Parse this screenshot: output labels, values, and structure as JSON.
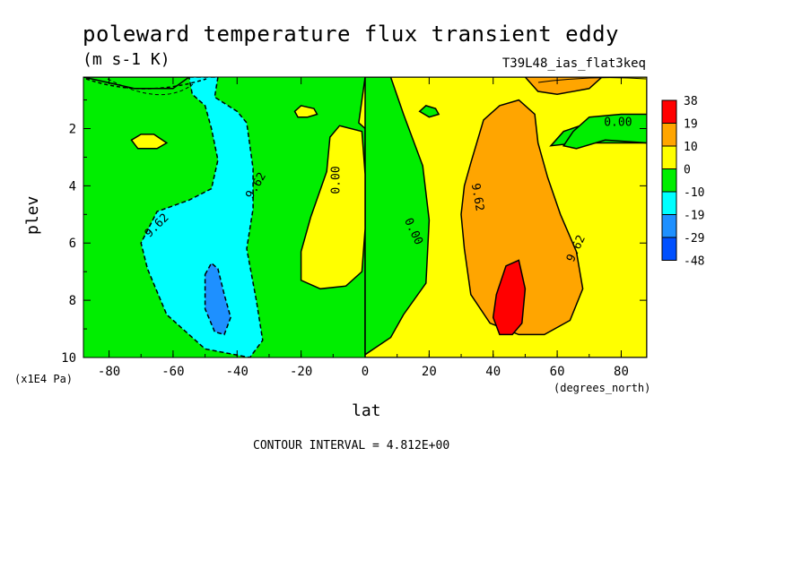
{
  "chart_data": {
    "type": "heatmap",
    "title": "poleward temperature flux transient eddy",
    "units": "(m s-1 K)",
    "run_id": "T39L48_ias_flat3keq",
    "xlabel": "lat",
    "x_units": "(degrees_north)",
    "ylabel": "plev",
    "y_units": "(x1E4 Pa)",
    "xlim": [
      -88,
      88
    ],
    "ylim": [
      10,
      0.2
    ],
    "x_ticks": [
      "-80",
      "-60",
      "-40",
      "-20",
      "0",
      "20",
      "40",
      "60",
      "80"
    ],
    "x_tick_values": [
      -80,
      -60,
      -40,
      -20,
      0,
      20,
      40,
      60,
      80
    ],
    "y_ticks": [
      "2",
      "4",
      "6",
      "8",
      "10"
    ],
    "y_tick_values": [
      2,
      4,
      6,
      8,
      10
    ],
    "contour_interval": "CONTOUR INTERVAL = 4.812E+00",
    "contour_labels": [
      {
        "text": "9.62",
        "lat": -65,
        "plev": 5.4,
        "rot": -45
      },
      {
        "text": "9.62",
        "lat": -34,
        "plev": 4.0,
        "rot": -60
      },
      {
        "text": "0.00",
        "lat": -9,
        "plev": 3.8,
        "rot": -90
      },
      {
        "text": "0.00",
        "lat": 15,
        "plev": 5.6,
        "rot": 65
      },
      {
        "text": "9.62",
        "lat": 35,
        "plev": 4.4,
        "rot": 80
      },
      {
        "text": "9.62",
        "lat": 66,
        "plev": 6.2,
        "rot": -65
      },
      {
        "text": "0.00",
        "lat": 79,
        "plev": 1.8,
        "rot": 0
      }
    ],
    "legend": [
      {
        "label": "38",
        "color": "#ff0000"
      },
      {
        "label": "19",
        "color": "#ffa500"
      },
      {
        "label": "10",
        "color": "#ffff00"
      },
      {
        "label": "0",
        "color": "#00ee00"
      },
      {
        "label": "-10",
        "color": "#00ffff"
      },
      {
        "label": "-19",
        "color": "#1e90ff"
      },
      {
        "label": "-29",
        "color": "#0050ff"
      },
      {
        "label": "-48",
        "color": ""
      }
    ],
    "regions": [
      {
        "name": "green-bg",
        "color": "#00ee00",
        "pts": [
          [
            -88,
            0.2
          ],
          [
            88,
            0.2
          ],
          [
            88,
            10
          ],
          [
            -88,
            10
          ]
        ]
      },
      {
        "name": "yellow-nh",
        "color": "#ffff00",
        "pts": [
          [
            0,
            0.2
          ],
          [
            88,
            0.2
          ],
          [
            88,
            1.7
          ],
          [
            75,
            1.6
          ],
          [
            62,
            2.1
          ],
          [
            58,
            2.6
          ],
          [
            66,
            2.5
          ],
          [
            88,
            2.5
          ],
          [
            88,
            10
          ],
          [
            0,
            10
          ],
          [
            0,
            2.0
          ],
          [
            -2,
            1.8
          ]
        ]
      },
      {
        "name": "green-nh-tongue",
        "color": "#00ee00",
        "pts": [
          [
            0,
            0.2
          ],
          [
            0,
            9.9
          ],
          [
            8,
            9.3
          ],
          [
            12,
            8.5
          ],
          [
            19,
            7.4
          ],
          [
            20,
            5.2
          ],
          [
            18,
            3.3
          ],
          [
            12,
            1.5
          ],
          [
            8,
            0.2
          ]
        ]
      },
      {
        "name": "yellow-midlat-sh",
        "color": "#ffff00",
        "pts": [
          [
            -20,
            7.3
          ],
          [
            -20,
            6.3
          ],
          [
            -17,
            5.1
          ],
          [
            -12,
            3.5
          ],
          [
            -11,
            2.3
          ],
          [
            -8,
            1.9
          ],
          [
            -1,
            2.1
          ],
          [
            0,
            3.6
          ],
          [
            0,
            5.5
          ],
          [
            -1,
            7.0
          ],
          [
            -6,
            7.5
          ],
          [
            -14,
            7.6
          ]
        ]
      },
      {
        "name": "yellow-small-sh",
        "color": "#ffff00",
        "pts": [
          [
            -73,
            2.4
          ],
          [
            -70,
            2.2
          ],
          [
            -66,
            2.2
          ],
          [
            -62,
            2.5
          ],
          [
            -65,
            2.7
          ],
          [
            -71,
            2.7
          ]
        ]
      },
      {
        "name": "yellow-small-sh2",
        "color": "#ffff00",
        "pts": [
          [
            -22,
            1.4
          ],
          [
            -20,
            1.2
          ],
          [
            -16,
            1.3
          ],
          [
            -15,
            1.5
          ],
          [
            -18,
            1.6
          ],
          [
            -21,
            1.6
          ]
        ]
      },
      {
        "name": "green-small-nh",
        "color": "#00ee00",
        "pts": [
          [
            17,
            1.4
          ],
          [
            19,
            1.2
          ],
          [
            22,
            1.3
          ],
          [
            23,
            1.5
          ],
          [
            20,
            1.6
          ]
        ]
      },
      {
        "name": "green-top-nh",
        "color": "#00ee00",
        "pts": [
          [
            62,
            2.6
          ],
          [
            65,
            2.1
          ],
          [
            70,
            1.6
          ],
          [
            80,
            1.5
          ],
          [
            88,
            1.5
          ],
          [
            88,
            2.5
          ],
          [
            75,
            2.4
          ],
          [
            66,
            2.7
          ]
        ]
      },
      {
        "name": "orange-nh",
        "color": "#ffa500",
        "pts": [
          [
            33,
            3.2
          ],
          [
            37,
            1.7
          ],
          [
            42,
            1.2
          ],
          [
            48,
            1.0
          ],
          [
            53,
            1.5
          ],
          [
            54,
            2.5
          ],
          [
            57,
            3.7
          ],
          [
            61,
            5.0
          ],
          [
            66,
            6.3
          ],
          [
            68,
            7.6
          ],
          [
            64,
            8.7
          ],
          [
            56,
            9.2
          ],
          [
            48,
            9.2
          ],
          [
            39,
            8.8
          ],
          [
            33,
            7.8
          ],
          [
            31,
            6.2
          ],
          [
            30,
            5.0
          ],
          [
            31,
            4.0
          ]
        ]
      },
      {
        "name": "orange-top-nh",
        "color": "#ffa500",
        "pts": [
          [
            50,
            0.2
          ],
          [
            74,
            0.2
          ],
          [
            70,
            0.6
          ],
          [
            60,
            0.8
          ],
          [
            54,
            0.7
          ]
        ]
      },
      {
        "name": "red-nh",
        "color": "#ff0000",
        "pts": [
          [
            41,
            7.8
          ],
          [
            44,
            6.8
          ],
          [
            48,
            6.6
          ],
          [
            50,
            7.6
          ],
          [
            49,
            8.8
          ],
          [
            46,
            9.2
          ],
          [
            42,
            9.2
          ],
          [
            40,
            8.6
          ]
        ]
      },
      {
        "name": "cyan-sh",
        "color": "#00ffff",
        "pts": [
          [
            -55,
            0.2
          ],
          [
            -46,
            0.2
          ],
          [
            -47,
            0.9
          ],
          [
            -40,
            1.4
          ],
          [
            -37,
            1.8
          ],
          [
            -35,
            3.4
          ],
          [
            -35,
            4.8
          ],
          [
            -37,
            6.2
          ],
          [
            -34,
            8.0
          ],
          [
            -32,
            9.4
          ],
          [
            -36,
            10.0
          ],
          [
            -50,
            9.7
          ],
          [
            -62,
            8.5
          ],
          [
            -68,
            6.9
          ],
          [
            -70,
            6.0
          ],
          [
            -65,
            4.9
          ],
          [
            -55,
            4.5
          ],
          [
            -48,
            4.1
          ],
          [
            -46,
            3.1
          ],
          [
            -48,
            2.0
          ],
          [
            -50,
            1.2
          ],
          [
            -54,
            0.8
          ]
        ]
      },
      {
        "name": "blue-sh",
        "color": "#1e90ff",
        "pts": [
          [
            -50,
            7.1
          ],
          [
            -48,
            6.7
          ],
          [
            -46,
            6.9
          ],
          [
            -44,
            7.8
          ],
          [
            -42,
            8.6
          ],
          [
            -44,
            9.2
          ],
          [
            -47,
            9.1
          ],
          [
            -50,
            8.3
          ]
        ]
      },
      {
        "name": "dark-band-top",
        "color": "#00ee00",
        "pts": [
          [
            -88,
            0.2
          ],
          [
            -55,
            0.2
          ],
          [
            -60,
            0.6
          ],
          [
            -72,
            0.6
          ],
          [
            -80,
            0.4
          ]
        ]
      }
    ]
  }
}
